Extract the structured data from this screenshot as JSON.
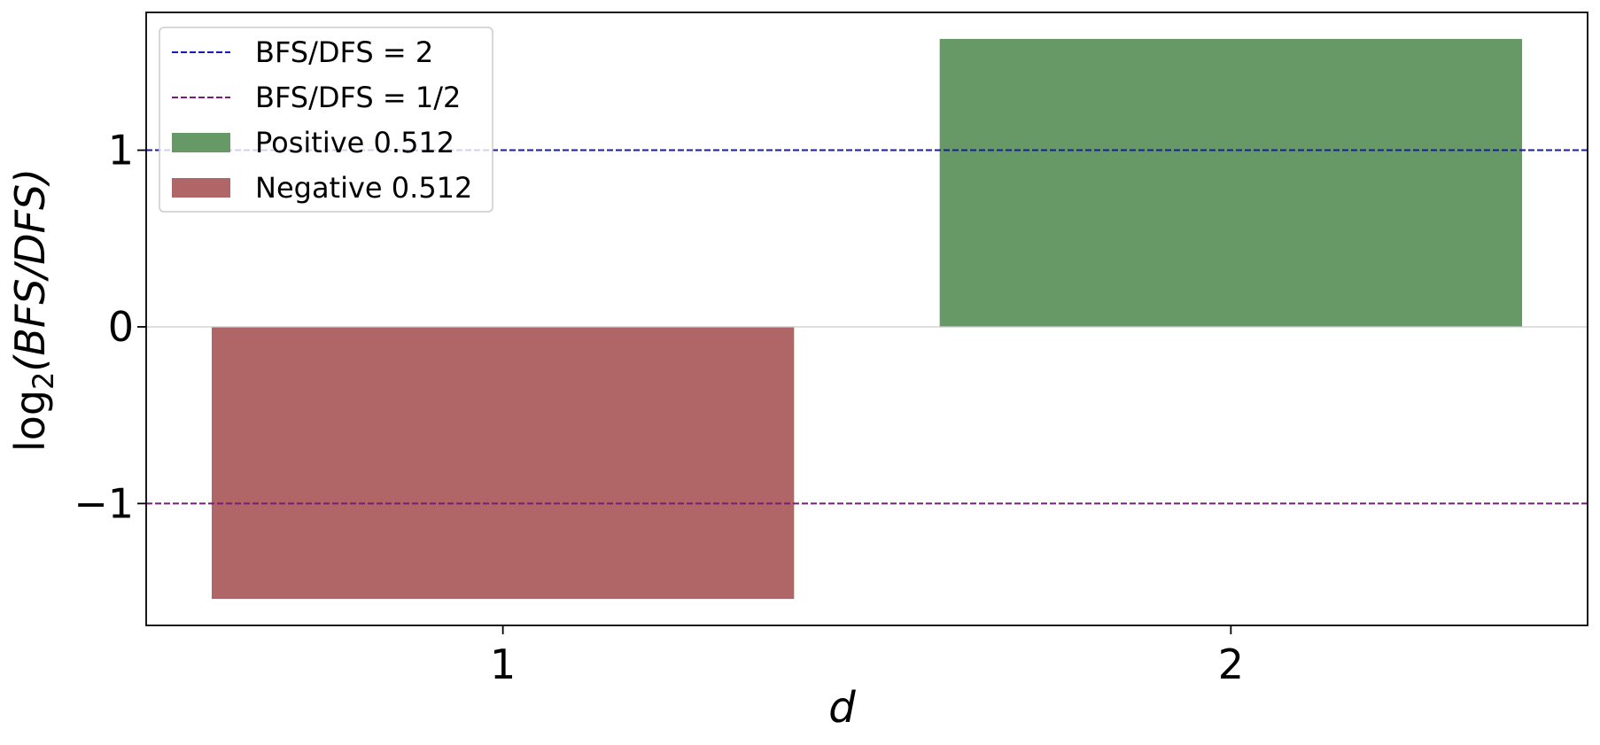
{
  "chart_data": {
    "type": "bar",
    "categories": [
      "1",
      "2"
    ],
    "x": [
      1,
      2
    ],
    "series": [
      {
        "name": "Positive 0.512",
        "x": [
          2
        ],
        "values": [
          1.63
        ],
        "color": "#669966"
      },
      {
        "name": "Negative 0.512",
        "x": [
          1
        ],
        "values": [
          -1.54
        ],
        "color": "#b06666"
      }
    ],
    "reference_lines": [
      {
        "name": "BFS/DFS = 2",
        "y": 1,
        "color": "#1a1ab3",
        "style": "dashed"
      },
      {
        "name": "BFS/DFS = 1/2",
        "y": -1,
        "color": "#7a1a7a",
        "style": "dashed"
      }
    ],
    "zero_line": {
      "y": 0,
      "color": "#cccccc"
    },
    "xlabel": "d",
    "ylabel_prefix": "log",
    "ylabel_subscript": "2",
    "ylabel_expr": "(BFS/DFS)",
    "xlim": [
      0.51,
      2.49
    ],
    "ylim": [
      -1.69,
      1.78
    ],
    "yticks": [
      -1,
      0,
      1
    ],
    "ytick_labels": [
      "−1",
      "0",
      "1"
    ],
    "xticks": [
      1,
      2
    ],
    "xtick_labels": [
      "1",
      "2"
    ],
    "grid": false,
    "legend_position": "upper-left",
    "legend": [
      {
        "label": "BFS/DFS = 2",
        "kind": "line",
        "color": "#1a1ab3"
      },
      {
        "label": "BFS/DFS = 1/2",
        "kind": "line",
        "color": "#7a1a7a"
      },
      {
        "label": "Positive 0.512",
        "kind": "patch",
        "color": "#669966"
      },
      {
        "label": "Negative 0.512",
        "kind": "patch",
        "color": "#b06666"
      }
    ]
  }
}
